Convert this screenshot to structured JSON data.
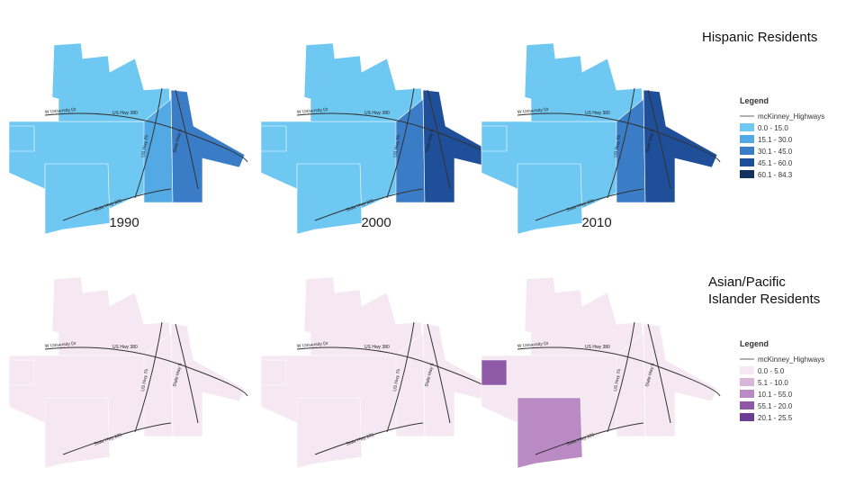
{
  "sections": [
    {
      "title": "Hispanic Residents",
      "legend": {
        "title": "Legend",
        "highways": "mcKinney_Highways",
        "classes": [
          {
            "label": "0.0 - 15.0",
            "color": "#6ec8f2"
          },
          {
            "label": "15.1 - 30.0",
            "color": "#52a9e3"
          },
          {
            "label": "30.1 - 45.0",
            "color": "#3a7cc5"
          },
          {
            "label": "45.1 - 60.0",
            "color": "#1f4f99"
          },
          {
            "label": "60.1 - 84.3",
            "color": "#13305e"
          }
        ]
      },
      "maps": [
        {
          "year": "1990",
          "zones": [
            0,
            0,
            1,
            2,
            0,
            0
          ]
        },
        {
          "year": "2000",
          "zones": [
            0,
            0,
            2,
            3,
            0,
            0
          ]
        },
        {
          "year": "2010",
          "zones": [
            0,
            0,
            2,
            3,
            0,
            0
          ]
        }
      ]
    },
    {
      "title": "Asian/Pacific Islander Residents",
      "legend": {
        "title": "Legend",
        "highways": "mcKinney_Highways",
        "classes": [
          {
            "label": "0.0 - 5.0",
            "color": "#f5e8f2"
          },
          {
            "label": "5.1 - 10.0",
            "color": "#d9b5da"
          },
          {
            "label": "10.1 - 55.0",
            "color": "#b98ac4"
          },
          {
            "label": "55.1 - 20.0",
            "color": "#8e5aa8"
          },
          {
            "label": "20.1 - 25.5",
            "color": "#6b3d93"
          }
        ]
      },
      "maps": [
        {
          "zones": [
            0,
            0,
            0,
            0,
            0,
            0
          ]
        },
        {
          "zones": [
            0,
            0,
            0,
            0,
            0,
            0
          ]
        },
        {
          "zones": [
            0,
            0,
            0,
            0,
            2,
            3
          ]
        }
      ]
    }
  ],
  "highway_labels": [
    "W University Dr",
    "US Hwy 380",
    "US Hwy 75",
    "State Hwy 5",
    "State Hwy 121"
  ]
}
